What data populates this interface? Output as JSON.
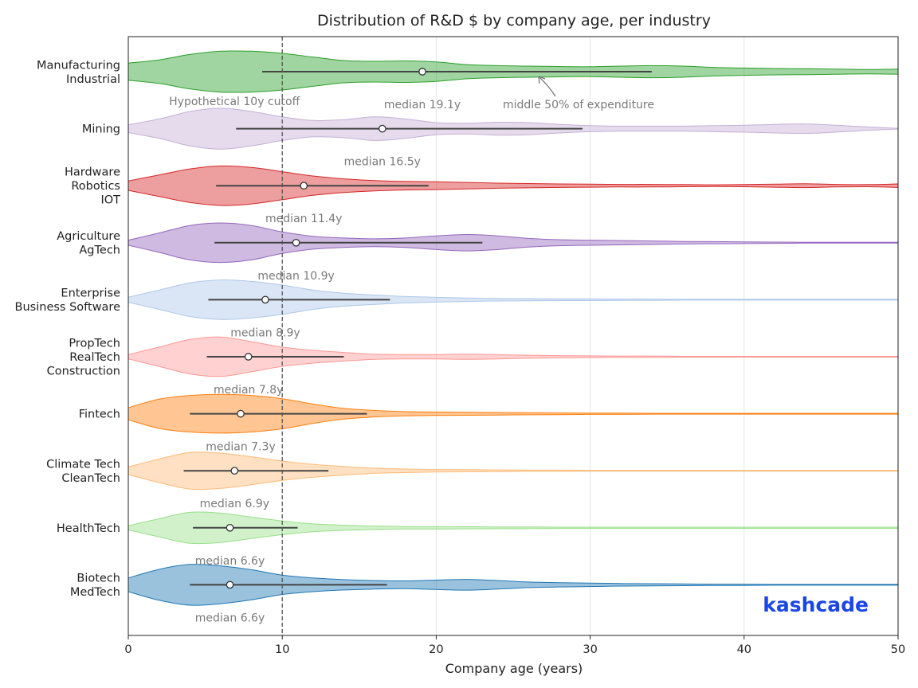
{
  "chart_data": {
    "type": "violin",
    "title": "Distribution of R&D $ by company age, per industry",
    "xlabel": "Company age (years)",
    "ylabel": "",
    "xlim": [
      0,
      50
    ],
    "xticks": [
      0,
      10,
      20,
      30,
      40,
      50
    ],
    "grid": "vertical",
    "cutoff": {
      "x": 10,
      "label": "Hypothetical 10y cutoff"
    },
    "iqr_annotation": "middle 50% of expenditure",
    "brand": "kashcade",
    "series": [
      {
        "name": "Manufacturing\nIndustrial",
        "label_lines": [
          "Manufacturing",
          "Industrial"
        ],
        "color": "#2ca02c",
        "median": 19.1,
        "q1": 8.7,
        "q3": 34.0,
        "median_label": "median 19.1y",
        "density": [
          [
            0,
            0.4
          ],
          [
            2,
            0.55
          ],
          [
            4,
            0.8
          ],
          [
            6,
            0.95
          ],
          [
            8,
            0.95
          ],
          [
            10,
            0.85
          ],
          [
            12,
            0.68
          ],
          [
            14,
            0.52
          ],
          [
            16,
            0.48
          ],
          [
            18,
            0.5
          ],
          [
            20,
            0.45
          ],
          [
            22,
            0.33
          ],
          [
            24,
            0.28
          ],
          [
            26,
            0.26
          ],
          [
            28,
            0.24
          ],
          [
            30,
            0.23
          ],
          [
            32,
            0.26
          ],
          [
            34,
            0.28
          ],
          [
            36,
            0.26
          ],
          [
            38,
            0.2
          ],
          [
            40,
            0.17
          ],
          [
            42,
            0.15
          ],
          [
            44,
            0.14
          ],
          [
            46,
            0.12
          ],
          [
            48,
            0.1
          ],
          [
            50,
            0.12
          ]
        ]
      },
      {
        "name": "Mining",
        "label_lines": [
          "Mining"
        ],
        "color": "#c5b0d5",
        "median": 16.5,
        "q1": 7.0,
        "q3": 29.5,
        "median_label": "median 16.5y",
        "density": [
          [
            0,
            0.18
          ],
          [
            2,
            0.45
          ],
          [
            4,
            0.8
          ],
          [
            6,
            0.95
          ],
          [
            8,
            0.8
          ],
          [
            10,
            0.55
          ],
          [
            12,
            0.38
          ],
          [
            14,
            0.42
          ],
          [
            16,
            0.55
          ],
          [
            18,
            0.45
          ],
          [
            20,
            0.28
          ],
          [
            22,
            0.25
          ],
          [
            24,
            0.3
          ],
          [
            26,
            0.28
          ],
          [
            28,
            0.2
          ],
          [
            30,
            0.14
          ],
          [
            32,
            0.12
          ],
          [
            34,
            0.12
          ],
          [
            36,
            0.12
          ],
          [
            38,
            0.14
          ],
          [
            40,
            0.16
          ],
          [
            42,
            0.2
          ],
          [
            44,
            0.22
          ],
          [
            46,
            0.16
          ],
          [
            48,
            0.08
          ],
          [
            50,
            0.02
          ]
        ]
      },
      {
        "name": "Hardware\nRobotics\nIOT",
        "label_lines": [
          "Hardware",
          "Robotics",
          "IOT"
        ],
        "color": "#d62728",
        "median": 11.4,
        "q1": 5.7,
        "q3": 19.5,
        "median_label": "median 11.4y",
        "density": [
          [
            0,
            0.22
          ],
          [
            2,
            0.5
          ],
          [
            4,
            0.78
          ],
          [
            6,
            0.92
          ],
          [
            8,
            0.85
          ],
          [
            10,
            0.65
          ],
          [
            12,
            0.45
          ],
          [
            14,
            0.32
          ],
          [
            16,
            0.24
          ],
          [
            18,
            0.2
          ],
          [
            20,
            0.18
          ],
          [
            22,
            0.15
          ],
          [
            24,
            0.12
          ],
          [
            26,
            0.1
          ],
          [
            28,
            0.08
          ],
          [
            30,
            0.07
          ],
          [
            32,
            0.06
          ],
          [
            34,
            0.06
          ],
          [
            36,
            0.05
          ],
          [
            38,
            0.04
          ],
          [
            40,
            0.05
          ],
          [
            42,
            0.07
          ],
          [
            44,
            0.09
          ],
          [
            46,
            0.06
          ],
          [
            48,
            0.05
          ],
          [
            50,
            0.08
          ]
        ]
      },
      {
        "name": "Agriculture\nAgTech",
        "label_lines": [
          "Agriculture",
          "AgTech"
        ],
        "color": "#9467bd",
        "median": 10.9,
        "q1": 5.6,
        "q3": 23.0,
        "median_label": "median 10.9y",
        "density": [
          [
            0,
            0.12
          ],
          [
            2,
            0.45
          ],
          [
            4,
            0.8
          ],
          [
            6,
            0.92
          ],
          [
            8,
            0.8
          ],
          [
            10,
            0.5
          ],
          [
            12,
            0.3
          ],
          [
            14,
            0.22
          ],
          [
            16,
            0.18
          ],
          [
            18,
            0.22
          ],
          [
            20,
            0.32
          ],
          [
            22,
            0.38
          ],
          [
            24,
            0.32
          ],
          [
            26,
            0.2
          ],
          [
            28,
            0.14
          ],
          [
            30,
            0.12
          ],
          [
            32,
            0.1
          ],
          [
            34,
            0.08
          ],
          [
            36,
            0.06
          ],
          [
            38,
            0.05
          ],
          [
            40,
            0.04
          ],
          [
            42,
            0.03
          ],
          [
            44,
            0.02
          ],
          [
            46,
            0.02
          ],
          [
            48,
            0.02
          ],
          [
            50,
            0.02
          ]
        ]
      },
      {
        "name": "Enterprise\nBusiness Software",
        "label_lines": [
          "Enterprise",
          "Business Software"
        ],
        "color": "#aec7e8",
        "median": 8.9,
        "q1": 5.2,
        "q3": 17.0,
        "median_label": "median 8.9y",
        "density": [
          [
            0,
            0.12
          ],
          [
            2,
            0.45
          ],
          [
            4,
            0.78
          ],
          [
            6,
            0.92
          ],
          [
            8,
            0.85
          ],
          [
            10,
            0.68
          ],
          [
            12,
            0.45
          ],
          [
            14,
            0.3
          ],
          [
            16,
            0.22
          ],
          [
            18,
            0.15
          ],
          [
            20,
            0.11
          ],
          [
            22,
            0.08
          ],
          [
            24,
            0.06
          ],
          [
            26,
            0.05
          ],
          [
            28,
            0.04
          ],
          [
            30,
            0.04
          ],
          [
            32,
            0.03
          ],
          [
            34,
            0.03
          ],
          [
            36,
            0.02
          ],
          [
            38,
            0.02
          ],
          [
            40,
            0.02
          ],
          [
            42,
            0.02
          ],
          [
            44,
            0.02
          ],
          [
            46,
            0.02
          ],
          [
            48,
            0.02
          ],
          [
            50,
            0.02
          ]
        ]
      },
      {
        "name": "PropTech\nRealTech\nConstruction",
        "label_lines": [
          "PropTech",
          "RealTech",
          "Construction"
        ],
        "color": "#ff9896",
        "median": 7.8,
        "q1": 5.1,
        "q3": 14.0,
        "median_label": "median 7.8y",
        "density": [
          [
            0,
            0.1
          ],
          [
            2,
            0.45
          ],
          [
            4,
            0.8
          ],
          [
            6,
            0.92
          ],
          [
            8,
            0.7
          ],
          [
            10,
            0.45
          ],
          [
            12,
            0.3
          ],
          [
            14,
            0.2
          ],
          [
            16,
            0.12
          ],
          [
            18,
            0.1
          ],
          [
            20,
            0.1
          ],
          [
            22,
            0.12
          ],
          [
            24,
            0.1
          ],
          [
            26,
            0.07
          ],
          [
            28,
            0.05
          ],
          [
            30,
            0.04
          ],
          [
            32,
            0.03
          ],
          [
            34,
            0.03
          ],
          [
            36,
            0.02
          ],
          [
            38,
            0.02
          ],
          [
            40,
            0.02
          ],
          [
            42,
            0.02
          ],
          [
            44,
            0.02
          ],
          [
            46,
            0.02
          ],
          [
            48,
            0.02
          ],
          [
            50,
            0.02
          ]
        ]
      },
      {
        "name": "Fintech",
        "label_lines": [
          "Fintech"
        ],
        "color": "#ff7f0e",
        "median": 7.3,
        "q1": 4.0,
        "q3": 15.5,
        "median_label": "median 7.3y",
        "density": [
          [
            0,
            0.28
          ],
          [
            2,
            0.68
          ],
          [
            4,
            0.85
          ],
          [
            6,
            0.9
          ],
          [
            8,
            0.85
          ],
          [
            10,
            0.7
          ],
          [
            12,
            0.45
          ],
          [
            14,
            0.25
          ],
          [
            16,
            0.15
          ],
          [
            18,
            0.1
          ],
          [
            20,
            0.08
          ],
          [
            22,
            0.07
          ],
          [
            24,
            0.06
          ],
          [
            26,
            0.05
          ],
          [
            28,
            0.04
          ],
          [
            30,
            0.03
          ],
          [
            32,
            0.03
          ],
          [
            34,
            0.02
          ],
          [
            36,
            0.02
          ],
          [
            38,
            0.02
          ],
          [
            40,
            0.02
          ],
          [
            42,
            0.02
          ],
          [
            44,
            0.02
          ],
          [
            46,
            0.02
          ],
          [
            48,
            0.02
          ],
          [
            50,
            0.02
          ]
        ]
      },
      {
        "name": "Climate Tech\nCleanTech",
        "label_lines": [
          "Climate Tech",
          "CleanTech"
        ],
        "color": "#ffbb78",
        "median": 6.9,
        "q1": 3.6,
        "q3": 13.0,
        "median_label": "median 6.9y",
        "density": [
          [
            0,
            0.18
          ],
          [
            2,
            0.55
          ],
          [
            4,
            0.85
          ],
          [
            6,
            0.82
          ],
          [
            8,
            0.65
          ],
          [
            10,
            0.45
          ],
          [
            12,
            0.3
          ],
          [
            14,
            0.2
          ],
          [
            16,
            0.12
          ],
          [
            18,
            0.08
          ],
          [
            20,
            0.06
          ],
          [
            22,
            0.05
          ],
          [
            24,
            0.04
          ],
          [
            26,
            0.03
          ],
          [
            28,
            0.03
          ],
          [
            30,
            0.02
          ],
          [
            32,
            0.02
          ],
          [
            34,
            0.02
          ],
          [
            36,
            0.02
          ],
          [
            38,
            0.02
          ],
          [
            40,
            0.02
          ],
          [
            42,
            0.02
          ],
          [
            44,
            0.02
          ],
          [
            46,
            0.02
          ],
          [
            48,
            0.02
          ],
          [
            50,
            0.02
          ]
        ]
      },
      {
        "name": "HealthTech",
        "label_lines": [
          "HealthTech"
        ],
        "color": "#98df8a",
        "median": 6.6,
        "q1": 4.2,
        "q3": 11.0,
        "median_label": "median 6.6y",
        "density": [
          [
            0,
            0.1
          ],
          [
            2,
            0.42
          ],
          [
            4,
            0.72
          ],
          [
            6,
            0.68
          ],
          [
            8,
            0.5
          ],
          [
            10,
            0.32
          ],
          [
            12,
            0.18
          ],
          [
            14,
            0.12
          ],
          [
            16,
            0.08
          ],
          [
            18,
            0.06
          ],
          [
            20,
            0.06
          ],
          [
            22,
            0.05
          ],
          [
            24,
            0.04
          ],
          [
            26,
            0.04
          ],
          [
            28,
            0.03
          ],
          [
            30,
            0.03
          ],
          [
            32,
            0.03
          ],
          [
            34,
            0.03
          ],
          [
            36,
            0.03
          ],
          [
            38,
            0.03
          ],
          [
            40,
            0.03
          ],
          [
            42,
            0.03
          ],
          [
            44,
            0.03
          ],
          [
            46,
            0.03
          ],
          [
            48,
            0.03
          ],
          [
            50,
            0.03
          ]
        ]
      },
      {
        "name": "Biotech\nMedTech",
        "label_lines": [
          "Biotech",
          "MedTech"
        ],
        "color": "#1f77b4",
        "median": 6.6,
        "q1": 4.0,
        "q3": 16.8,
        "median_label": "median 6.6y",
        "density": [
          [
            0,
            0.32
          ],
          [
            2,
            0.72
          ],
          [
            4,
            0.95
          ],
          [
            6,
            0.88
          ],
          [
            8,
            0.7
          ],
          [
            10,
            0.45
          ],
          [
            12,
            0.32
          ],
          [
            14,
            0.24
          ],
          [
            16,
            0.2
          ],
          [
            18,
            0.18
          ],
          [
            20,
            0.22
          ],
          [
            22,
            0.25
          ],
          [
            24,
            0.2
          ],
          [
            26,
            0.13
          ],
          [
            28,
            0.1
          ],
          [
            30,
            0.08
          ],
          [
            32,
            0.06
          ],
          [
            34,
            0.05
          ],
          [
            36,
            0.04
          ],
          [
            38,
            0.03
          ],
          [
            40,
            0.03
          ],
          [
            42,
            0.02
          ],
          [
            44,
            0.02
          ],
          [
            46,
            0.02
          ],
          [
            48,
            0.02
          ],
          [
            50,
            0.02
          ]
        ]
      }
    ]
  }
}
